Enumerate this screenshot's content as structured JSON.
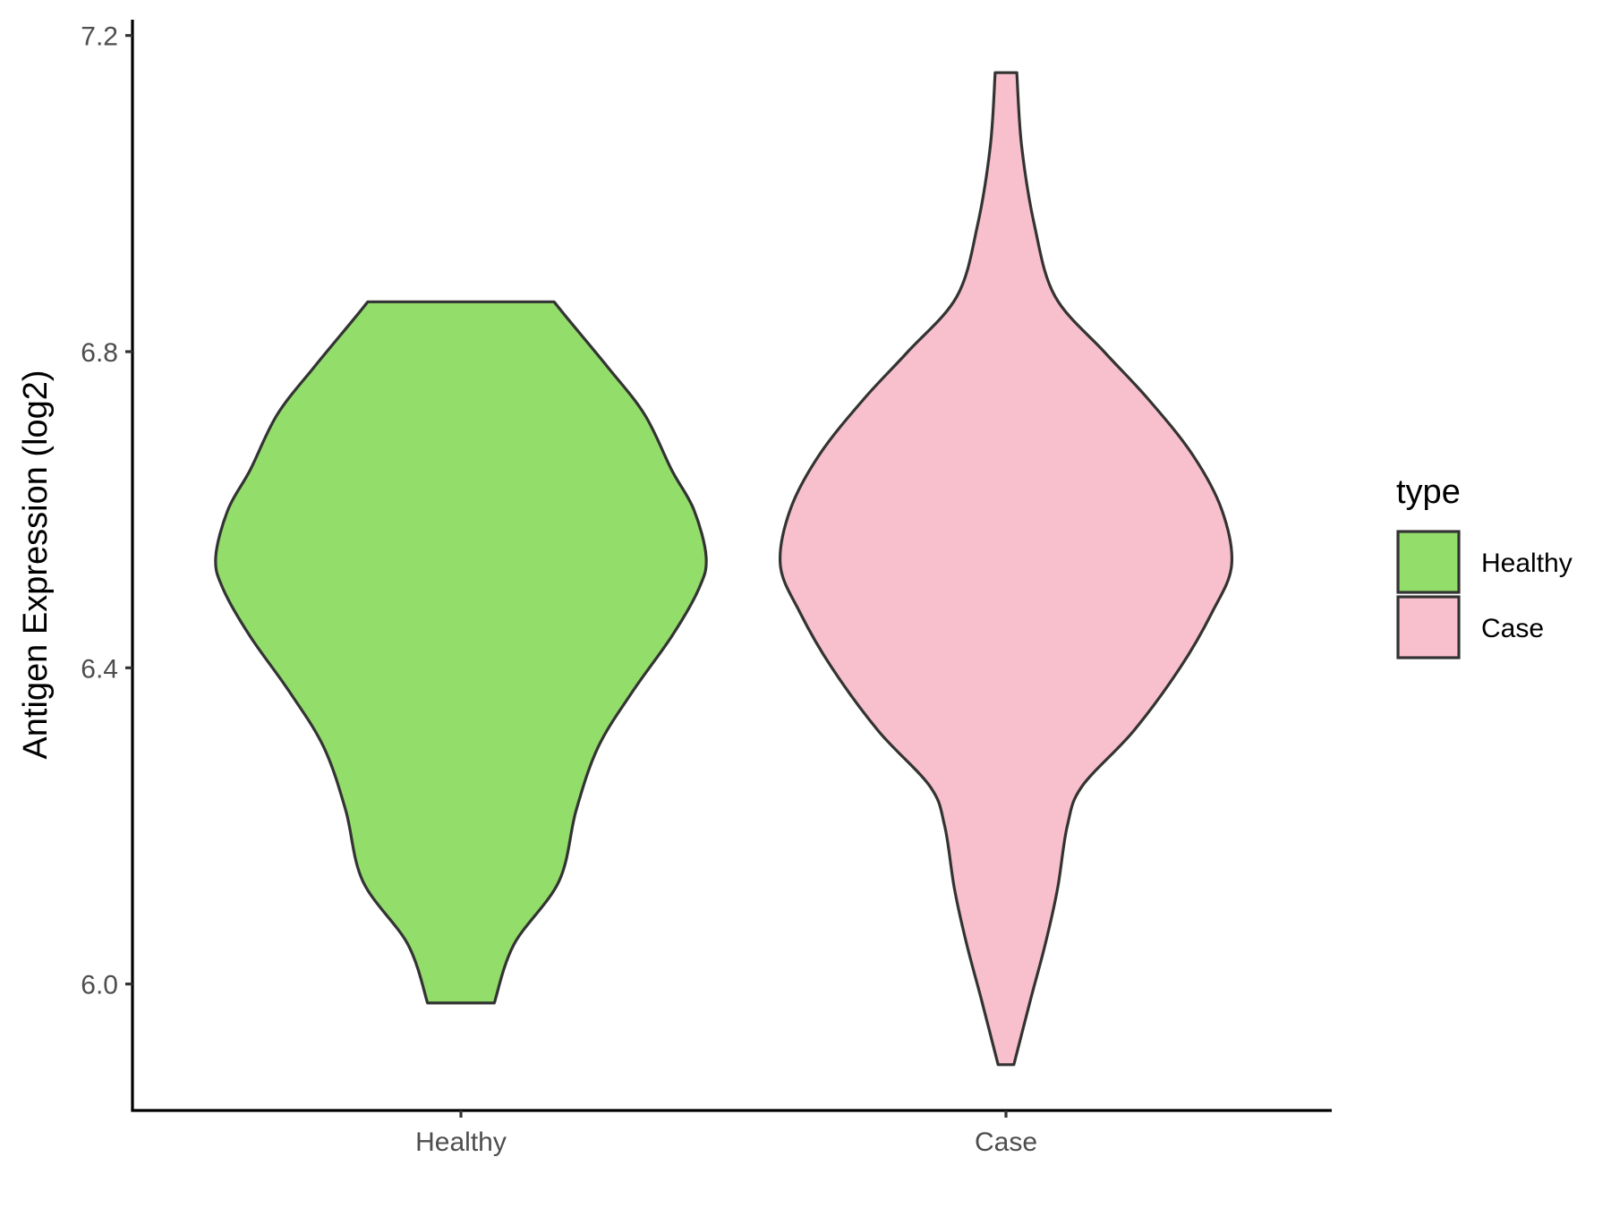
{
  "chart_data": {
    "type": "violin",
    "ylabel": "Antigen Expression (log2)",
    "xlabel": "",
    "ylim": [
      5.84,
      7.22
    ],
    "yticks": [
      6.0,
      6.4,
      6.8,
      7.2
    ],
    "ytick_labels": [
      "6.0",
      "6.4",
      "6.8",
      "7.2"
    ],
    "categories": [
      "Healthy",
      "Case"
    ],
    "grid": false,
    "legend": {
      "title": "type",
      "position": "right",
      "entries": [
        {
          "label": "Healthy",
          "color": "#93dd6b"
        },
        {
          "label": "Case",
          "color": "#f8c0cc"
        }
      ]
    },
    "series": [
      {
        "name": "Healthy",
        "color": "#93dd6b",
        "min": 5.976,
        "max": 6.863,
        "density": [
          [
            5.976,
            0.068
          ],
          [
            6.05,
            0.108
          ],
          [
            6.13,
            0.2
          ],
          [
            6.22,
            0.235
          ],
          [
            6.3,
            0.28
          ],
          [
            6.37,
            0.35
          ],
          [
            6.44,
            0.43
          ],
          [
            6.5,
            0.485
          ],
          [
            6.54,
            0.5
          ],
          [
            6.6,
            0.475
          ],
          [
            6.65,
            0.43
          ],
          [
            6.72,
            0.375
          ],
          [
            6.78,
            0.3
          ],
          [
            6.84,
            0.22
          ],
          [
            6.863,
            0.19
          ]
        ]
      },
      {
        "name": "Case",
        "color": "#f8c0cc",
        "min": 5.898,
        "max": 7.153,
        "density": [
          [
            5.898,
            0.016
          ],
          [
            5.98,
            0.05
          ],
          [
            6.05,
            0.08
          ],
          [
            6.12,
            0.105
          ],
          [
            6.2,
            0.125
          ],
          [
            6.25,
            0.155
          ],
          [
            6.32,
            0.26
          ],
          [
            6.4,
            0.355
          ],
          [
            6.47,
            0.42
          ],
          [
            6.53,
            0.46
          ],
          [
            6.6,
            0.44
          ],
          [
            6.67,
            0.38
          ],
          [
            6.74,
            0.29
          ],
          [
            6.8,
            0.2
          ],
          [
            6.87,
            0.1
          ],
          [
            6.96,
            0.058
          ],
          [
            7.06,
            0.032
          ],
          [
            7.153,
            0.022
          ]
        ]
      }
    ]
  }
}
